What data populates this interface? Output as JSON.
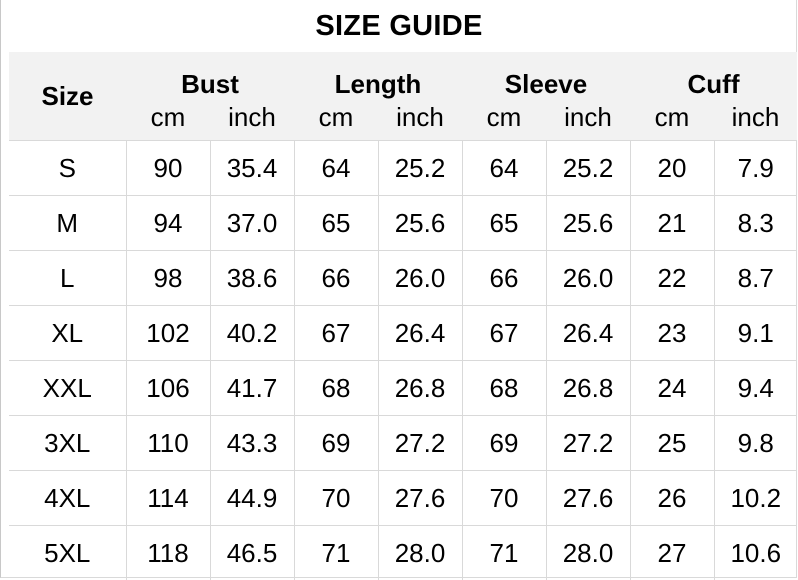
{
  "title": "SIZE GUIDE",
  "header": {
    "size_label": "Size",
    "groups": [
      "Bust",
      "Length",
      "Sleeve",
      "Cuff"
    ],
    "units": [
      "cm",
      "inch"
    ]
  },
  "colors": {
    "header_bg": "#f2f2f2",
    "grid": "#d9d9d9"
  },
  "rows": [
    [
      "S",
      "90",
      "35.4",
      "64",
      "25.2",
      "64",
      "25.2",
      "20",
      "7.9"
    ],
    [
      "M",
      "94",
      "37.0",
      "65",
      "25.6",
      "65",
      "25.6",
      "21",
      "8.3"
    ],
    [
      "L",
      "98",
      "38.6",
      "66",
      "26.0",
      "66",
      "26.0",
      "22",
      "8.7"
    ],
    [
      "XL",
      "102",
      "40.2",
      "67",
      "26.4",
      "67",
      "26.4",
      "23",
      "9.1"
    ],
    [
      "XXL",
      "106",
      "41.7",
      "68",
      "26.8",
      "68",
      "26.8",
      "24",
      "9.4"
    ],
    [
      "3XL",
      "110",
      "43.3",
      "69",
      "27.2",
      "69",
      "27.2",
      "25",
      "9.8"
    ],
    [
      "4XL",
      "114",
      "44.9",
      "70",
      "27.6",
      "70",
      "27.6",
      "26",
      "10.2"
    ],
    [
      "5XL",
      "118",
      "46.5",
      "71",
      "28.0",
      "71",
      "28.0",
      "27",
      "10.6"
    ]
  ]
}
